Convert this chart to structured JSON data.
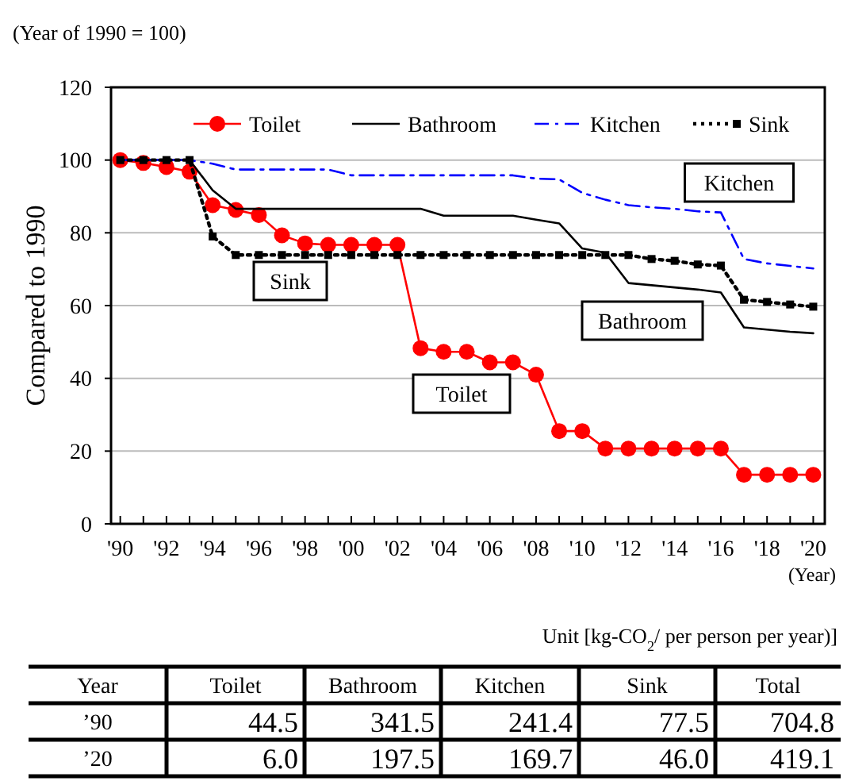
{
  "chart_data": {
    "type": "line",
    "ylabel": "Compared to 1990",
    "xlabel": "(Year)",
    "x": [
      1990,
      1991,
      1992,
      1993,
      1994,
      1995,
      1996,
      1997,
      1998,
      1999,
      2000,
      2001,
      2002,
      2003,
      2004,
      2005,
      2006,
      2007,
      2008,
      2009,
      2010,
      2011,
      2012,
      2013,
      2014,
      2015,
      2016,
      2017,
      2018,
      2019,
      2020
    ],
    "xlim": [
      1989.6,
      2020.5
    ],
    "xticks": [
      {
        "value": 1990,
        "label": "'90"
      },
      {
        "value": 1991,
        "label": null
      },
      {
        "value": 1992,
        "label": "'92"
      },
      {
        "value": 1993,
        "label": null
      },
      {
        "value": 1994,
        "label": "'94"
      },
      {
        "value": 1995,
        "label": null
      },
      {
        "value": 1996,
        "label": "'96"
      },
      {
        "value": 1997,
        "label": null
      },
      {
        "value": 1998,
        "label": "'98"
      },
      {
        "value": 1999,
        "label": null
      },
      {
        "value": 2000,
        "label": "'00"
      },
      {
        "value": 2001,
        "label": null
      },
      {
        "value": 2002,
        "label": "'02"
      },
      {
        "value": 2003,
        "label": null
      },
      {
        "value": 2004,
        "label": "'04"
      },
      {
        "value": 2005,
        "label": null
      },
      {
        "value": 2006,
        "label": "'06"
      },
      {
        "value": 2007,
        "label": null
      },
      {
        "value": 2008,
        "label": "'08"
      },
      {
        "value": 2009,
        "label": null
      },
      {
        "value": 2010,
        "label": "'10"
      },
      {
        "value": 2011,
        "label": null
      },
      {
        "value": 2012,
        "label": "'12"
      },
      {
        "value": 2013,
        "label": null
      },
      {
        "value": 2014,
        "label": "'14"
      },
      {
        "value": 2015,
        "label": null
      },
      {
        "value": 2016,
        "label": "'16"
      },
      {
        "value": 2017,
        "label": null
      },
      {
        "value": 2018,
        "label": "'18"
      },
      {
        "value": 2019,
        "label": null
      },
      {
        "value": 2020,
        "label": "'20"
      }
    ],
    "ylim": [
      0,
      120
    ],
    "yticks": [
      0,
      20,
      40,
      60,
      80,
      100,
      120
    ],
    "grid": "y",
    "legend": "top",
    "series": [
      {
        "name": "Toilet",
        "color": "#ff0000",
        "marker": "circle",
        "line_style": "solid",
        "values": [
          100,
          99.2,
          98.1,
          96.8,
          87.6,
          86.3,
          84.9,
          79.3,
          77.1,
          76.7,
          76.7,
          76.7,
          76.7,
          48.3,
          47.3,
          47.3,
          44.4,
          44.4,
          41.0,
          25.5,
          25.5,
          20.7,
          20.7,
          20.7,
          20.7,
          20.7,
          20.7,
          13.5,
          13.5,
          13.5,
          13.5
        ]
      },
      {
        "name": "Bathroom",
        "color": "#000000",
        "marker": "none",
        "line_style": "solid",
        "values": [
          100,
          100,
          100,
          100,
          91.7,
          86.6,
          86.6,
          86.6,
          86.6,
          86.6,
          86.6,
          86.6,
          86.6,
          86.6,
          84.7,
          84.7,
          84.7,
          84.7,
          83.6,
          82.6,
          75.7,
          74.5,
          66.2,
          65.6,
          65.0,
          64.4,
          63.6,
          54.0,
          53.4,
          52.8,
          52.4
        ]
      },
      {
        "name": "Kitchen",
        "color": "#0000ff",
        "marker": "none",
        "line_style": "dashed",
        "values": [
          100,
          100,
          100,
          100,
          99,
          97.4,
          97.4,
          97.4,
          97.4,
          97.4,
          95.8,
          95.8,
          95.8,
          95.8,
          95.8,
          95.8,
          95.8,
          95.8,
          94.9,
          94.7,
          91.0,
          89.1,
          87.6,
          87.0,
          86.6,
          85.9,
          85.6,
          72.8,
          71.6,
          70.9,
          70.2
        ]
      },
      {
        "name": "Sink",
        "color": "#000000",
        "marker": "square",
        "line_style": "dotted",
        "values": [
          100,
          100,
          100,
          100,
          79.0,
          73.9,
          73.9,
          73.9,
          73.9,
          73.9,
          73.9,
          73.9,
          73.9,
          73.9,
          73.9,
          73.9,
          73.9,
          73.9,
          73.9,
          73.9,
          73.9,
          73.9,
          73.9,
          72.8,
          72.3,
          71.3,
          71.0,
          61.6,
          61.0,
          60.3,
          59.7
        ]
      }
    ],
    "annotations": [
      "Kitchen",
      "Sink",
      "Toilet",
      "Bathroom",
      "(Year of 1990 = 100)",
      "Unit [kg-CO$_{2}$/ per person per year)]",
      "Year",
      "Toilet",
      "Bathroom",
      "Kitchen",
      "Sink",
      "Total",
      "’90",
      "44.5",
      "341.5",
      "241.4",
      "77.5",
      "704.8",
      "’20",
      "6.0",
      "197.5",
      "169.7",
      "46.0",
      "419.1"
    ]
  }
}
